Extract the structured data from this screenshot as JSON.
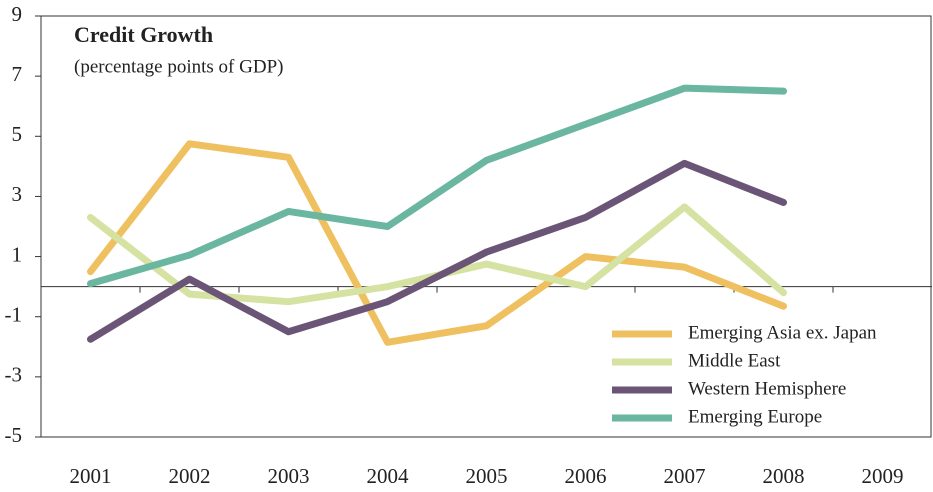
{
  "chart_data": {
    "type": "line",
    "title": "Credit Growth",
    "subtitle": "(percentage points of GDP)",
    "categories": [
      "2001",
      "2002",
      "2003",
      "2004",
      "2005",
      "2006",
      "2007",
      "2008",
      "2009"
    ],
    "series": [
      {
        "name": "Emerging Asia ex. Japan",
        "color": "#efc060",
        "values": [
          0.5,
          4.75,
          4.3,
          -1.85,
          -1.3,
          1.0,
          0.65,
          -0.65,
          null
        ]
      },
      {
        "name": "Middle East",
        "color": "#d5e2a2",
        "values": [
          2.3,
          -0.25,
          -0.5,
          0,
          0.75,
          0,
          2.65,
          -0.2,
          null
        ]
      },
      {
        "name": "Western Hemisphere",
        "color": "#6b5576",
        "values": [
          -1.75,
          0.25,
          -1.5,
          -0.5,
          1.15,
          2.3,
          4.1,
          2.8,
          null
        ]
      },
      {
        "name": "Emerging Europe",
        "color": "#6ab6a0",
        "values": [
          0.1,
          1.05,
          2.5,
          2.0,
          4.2,
          5.4,
          6.6,
          6.5,
          null
        ]
      }
    ],
    "ylim": [
      -5,
      9
    ],
    "yticks": [
      9,
      7,
      5,
      3,
      1,
      -1,
      -3,
      -5
    ],
    "legend": "lower right"
  }
}
